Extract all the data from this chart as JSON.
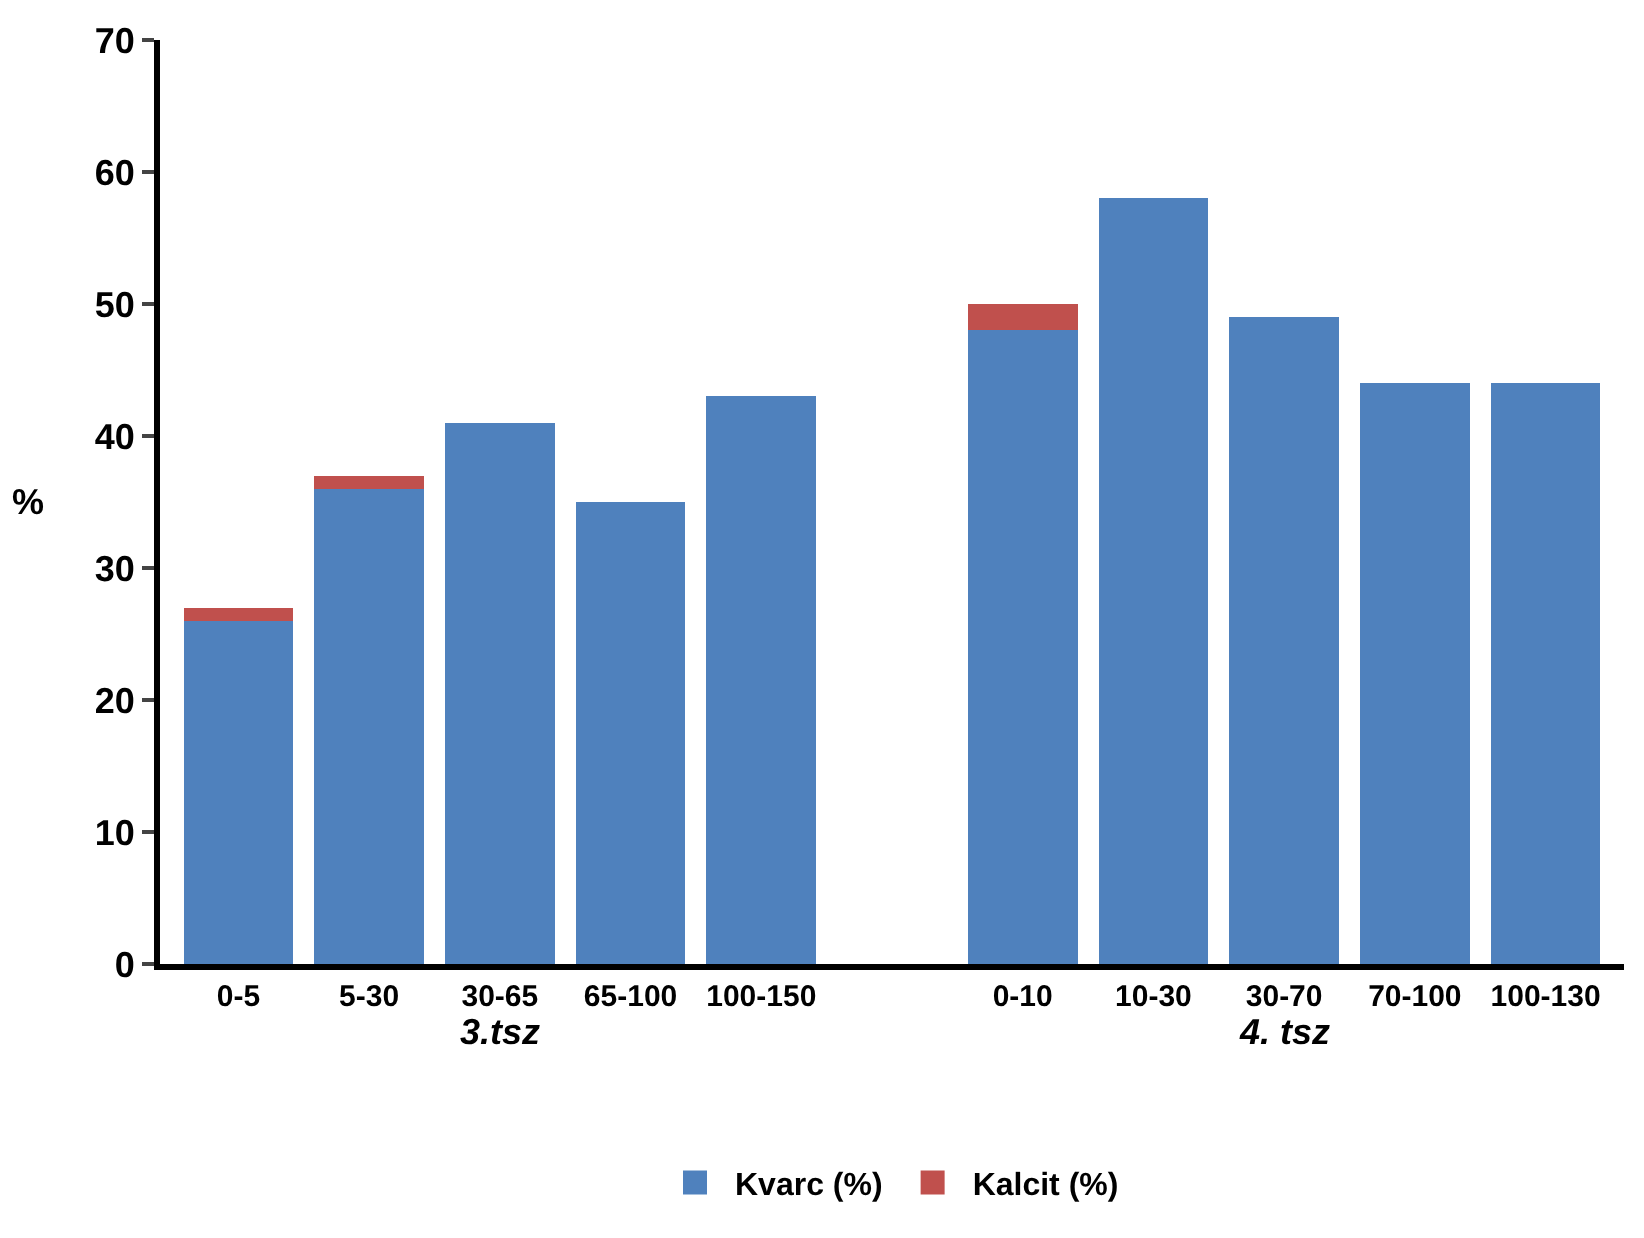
{
  "chart_data": {
    "type": "bar",
    "stacked": true,
    "ylabel": "%",
    "categories": [
      "0-5",
      "5-30",
      "30-65",
      "65-100",
      "100-150",
      null,
      "0-10",
      "10-30",
      "30-70",
      "70-100",
      "100-130"
    ],
    "series": [
      {
        "name": "Kvarc (%)",
        "color": "#4f81bd",
        "values": [
          26,
          36,
          41,
          35,
          43,
          null,
          48,
          58,
          49,
          44,
          44
        ]
      },
      {
        "name": "Kalcit (%)",
        "color": "#c0504d",
        "values": [
          1,
          1,
          0,
          0,
          0,
          null,
          2,
          0,
          0,
          0,
          0
        ]
      }
    ],
    "annotations": [
      "3.tsz",
      "4. tsz"
    ],
    "ylim": [
      0,
      70
    ],
    "yticks": [
      0,
      10,
      20,
      30,
      40,
      50,
      60,
      70
    ],
    "legend": "bottom"
  }
}
